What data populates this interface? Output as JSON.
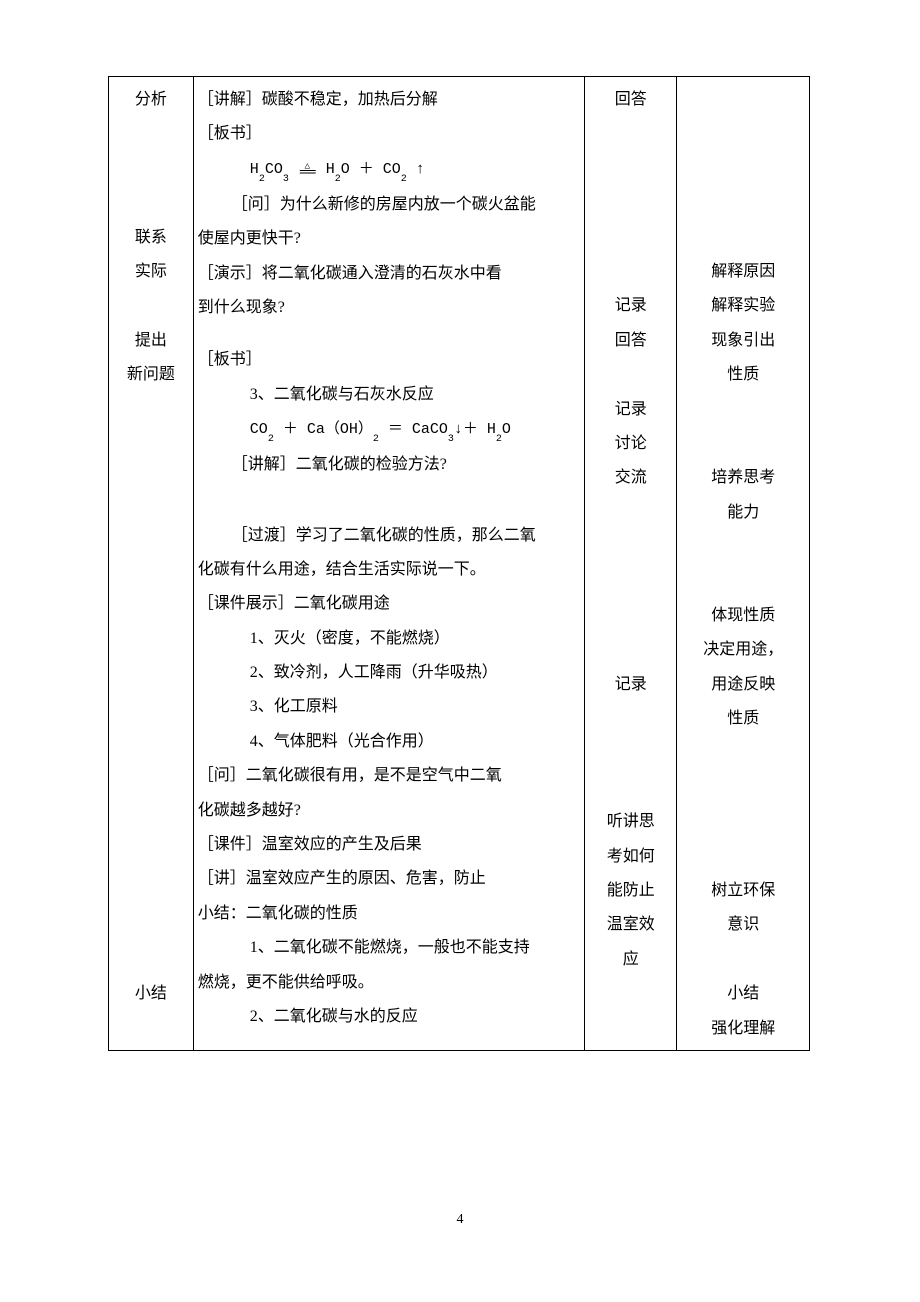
{
  "page_number": "4",
  "col1": {
    "l1": "分析",
    "l2": "联系",
    "l3": "实际",
    "l4": "提出",
    "l5": "新问题",
    "l6": "小结"
  },
  "col2": {
    "t1": "［讲解］碳酸不稳定，加热后分解",
    "t2": "［板书］",
    "eq1_left": "H",
    "eq1_s1": "2",
    "eq1_c": "CO",
    "eq1_s2": "3",
    "eq1_h2o_h": "H",
    "eq1_h2o_s1": "2",
    "eq1_h2o_o": "O",
    "eq1_plus": " ＋ CO",
    "eq1_s3": "2",
    "eq1_up": "↑",
    "t3a": "［问］为什么新修的房屋内放一个碳火盆能",
    "t3b": "使屋内更快干?",
    "t4a": "［演示］将二氧化碳通入澄清的石灰水中看",
    "t4b": "到什么现象?",
    "t5": "［板书］",
    "t6": "3、二氧化碳与石灰水反应",
    "eq2_a": "CO",
    "eq2_s1": "2",
    "eq2_b": " ＋ Ca（OH）",
    "eq2_s2": "2",
    "eq2_c": " ＝ CaCO",
    "eq2_s3": "3",
    "eq2_d": "↓＋ H",
    "eq2_s4": "2",
    "eq2_e": "O",
    "t7": "［讲解］二氧化碳的检验方法?",
    "t8a": "［过渡］学习了二氧化碳的性质，那么二氧",
    "t8b": "化碳有什么用途，结合生活实际说一下。",
    "t9": "［课件展示］二氧化碳用途",
    "t10": "1、灭火（密度，不能燃烧）",
    "t11": "2、致冷剂，人工降雨（升华吸热）",
    "t12": "3、化工原料",
    "t13": "4、气体肥料（光合作用）",
    "t14a": "［问］二氧化碳很有用，是不是空气中二氧",
    "t14b": "化碳越多越好?",
    "t15": "［课件］温室效应的产生及后果",
    "t16": "［讲］温室效应产生的原因、危害，防止",
    "t17": "小结：二氧化碳的性质",
    "t18a": "1、二氧化碳不能燃烧，一般也不能支持",
    "t18b": "燃烧，更不能供给呼吸。",
    "t19": "2、二氧化碳与水的反应"
  },
  "col3": {
    "l1": "回答",
    "l2": "记录",
    "l3": "回答",
    "l4": "记录",
    "l5": "讨论",
    "l6": "交流",
    "l7": "记录",
    "l8": "听讲思",
    "l9": "考如何",
    "l10": "能防止",
    "l11": "温室效",
    "l12": "应"
  },
  "col4": {
    "l1": "解释原因",
    "l2": "解释实验",
    "l3": "现象引出",
    "l4": "性质",
    "l5": "培养思考",
    "l6": "能力",
    "l7": "体现性质",
    "l8": "决定用途，",
    "l9": "用途反映",
    "l10": "性质",
    "l11": "树立环保",
    "l12": "意识",
    "l13": "小结",
    "l14": "强化理解"
  }
}
